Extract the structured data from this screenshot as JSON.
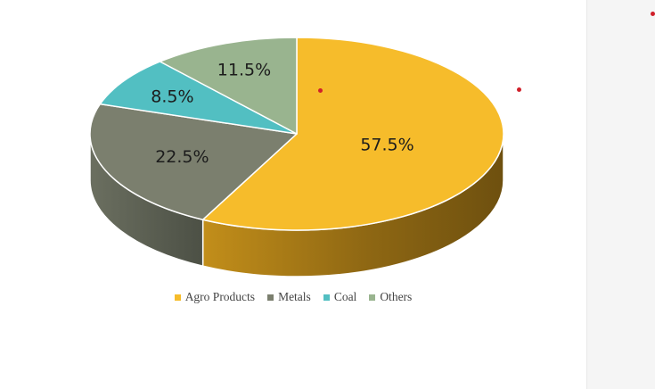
{
  "chart_data": {
    "type": "pie",
    "title": "",
    "categories": [
      "Agro Products",
      "Metals",
      "Coal",
      "Others"
    ],
    "values": [
      57.5,
      22.5,
      8.5,
      11.5
    ],
    "labels": [
      "57.5%",
      "22.5%",
      "8.5%",
      "11.5%"
    ],
    "colors": [
      "#F6BC2B",
      "#7B7F6E",
      "#52BFC2",
      "#99B48F"
    ],
    "side_colors": [
      "#8B6412",
      "#565A4D",
      "#2F8E91",
      "#6B8562"
    ],
    "legend_position": "bottom",
    "style": "3d"
  }
}
